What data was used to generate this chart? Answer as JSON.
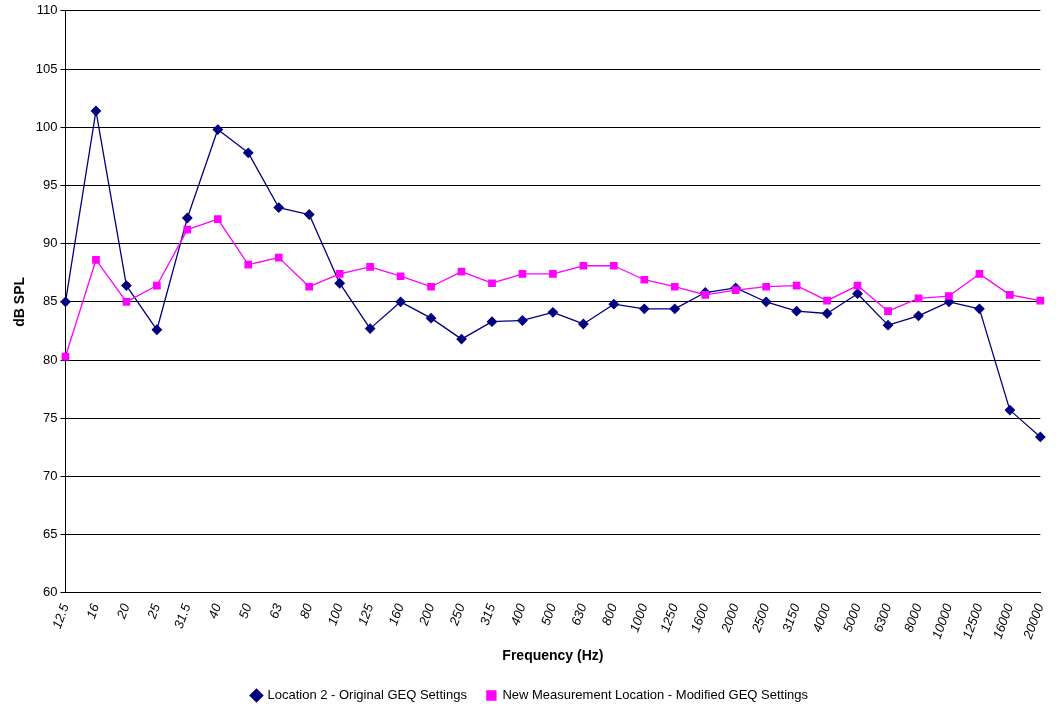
{
  "chart_data": {
    "type": "line",
    "xlabel": "Frequency (Hz)",
    "ylabel": "dB SPL",
    "categories": [
      "12.5",
      "16",
      "20",
      "25",
      "31.5",
      "40",
      "50",
      "63",
      "80",
      "100",
      "125",
      "160",
      "200",
      "250",
      "315",
      "400",
      "500",
      "630",
      "800",
      "1000",
      "1250",
      "1600",
      "2000",
      "2500",
      "3150",
      "4000",
      "5000",
      "6300",
      "8000",
      "10000",
      "12500",
      "16000",
      "20000"
    ],
    "series": [
      {
        "name": "Location 2 - Original GEQ Settings",
        "color": "#000080",
        "marker": "diamond",
        "values": [
          85.0,
          101.4,
          86.4,
          82.6,
          92.2,
          99.8,
          97.8,
          93.1,
          92.5,
          86.6,
          82.7,
          85.0,
          83.6,
          81.8,
          83.3,
          83.4,
          84.1,
          83.1,
          84.8,
          84.4,
          84.4,
          85.8,
          86.2,
          85.0,
          84.2,
          84.0,
          85.7,
          83.0,
          83.8,
          85.0,
          84.4,
          75.7,
          73.4
        ]
      },
      {
        "name": "New Measurement Location - Modified GEQ Settings",
        "color": "#ff00ff",
        "marker": "square",
        "values": [
          80.3,
          88.6,
          85.0,
          86.4,
          91.2,
          92.1,
          88.2,
          88.8,
          86.3,
          87.4,
          88.0,
          87.2,
          86.3,
          87.6,
          86.6,
          87.4,
          87.4,
          88.1,
          88.1,
          86.9,
          86.3,
          85.6,
          86.0,
          86.3,
          86.4,
          85.1,
          86.4,
          84.2,
          85.3,
          85.5,
          87.4,
          85.6,
          85.1
        ]
      }
    ],
    "ylim": [
      60,
      110
    ],
    "yticks": [
      60,
      65,
      70,
      75,
      80,
      85,
      90,
      95,
      100,
      105,
      110
    ],
    "grid": "y",
    "legend": "bottom"
  }
}
